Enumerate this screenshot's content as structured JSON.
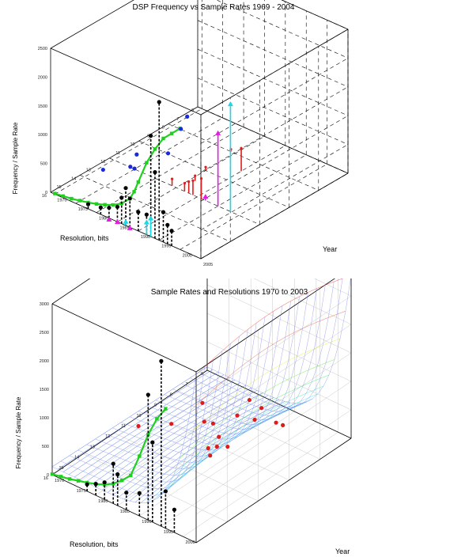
{
  "chart_data": [
    {
      "type": "3d-scatter-stem",
      "title": "DSP Frequency vs Sample Rates 1969 - 2004",
      "xlabel": "Year",
      "ylabel": "Resolution, bits",
      "zlabel": "Frequency / Sample Rate",
      "x_ticks": [
        "1970",
        "1975",
        "1980",
        "1985",
        "1990",
        "1995",
        "2000",
        "2005"
      ],
      "y_ticks": [
        "16",
        "15",
        "14",
        "13",
        "12",
        "11",
        "10",
        "9",
        "8",
        "7",
        "6"
      ],
      "z_ticks": [
        "0",
        "500",
        "1000",
        "1500",
        "2000",
        "2500"
      ],
      "xlim": [
        1969,
        2005
      ],
      "ylim": [
        6,
        16
      ],
      "zlim": [
        0,
        2500
      ],
      "grid": true,
      "series": [
        {
          "color": "#1fd01f",
          "kind": "line",
          "points": [
            {
              "x": 1970,
              "y": 16,
              "z": 10
            },
            {
              "x": 1972,
              "y": 16,
              "z": 30
            },
            {
              "x": 1974,
              "y": 16,
              "z": 50
            },
            {
              "x": 1976,
              "y": 16,
              "z": 80
            },
            {
              "x": 1978,
              "y": 16,
              "z": 110
            },
            {
              "x": 1980,
              "y": 16,
              "z": 150
            },
            {
              "x": 1982,
              "y": 16,
              "z": 200
            },
            {
              "x": 1984,
              "y": 16,
              "z": 260
            },
            {
              "x": 1986,
              "y": 16,
              "z": 350
            },
            {
              "x": 1988,
              "y": 16,
              "z": 500
            },
            {
              "x": 1989,
              "y": 16,
              "z": 650
            },
            {
              "x": 1990,
              "y": 16,
              "z": 850
            },
            {
              "x": 1992,
              "y": 16,
              "z": 1250
            },
            {
              "x": 1994,
              "y": 16,
              "z": 1550
            },
            {
              "x": 1996,
              "y": 16,
              "z": 1800
            },
            {
              "x": 1998,
              "y": 16,
              "z": 1950
            },
            {
              "x": 2000,
              "y": 16,
              "z": 2100
            }
          ]
        },
        {
          "color": "#000000",
          "kind": "stem",
          "points": [
            {
              "x": 1978,
              "y": 16,
              "z": 80
            },
            {
              "x": 1981,
              "y": 16,
              "z": 120
            },
            {
              "x": 1983,
              "y": 16,
              "z": 180
            },
            {
              "x": 1985,
              "y": 16,
              "z": 260
            },
            {
              "x": 1986,
              "y": 16,
              "z": 450
            },
            {
              "x": 1987,
              "y": 16,
              "z": 650
            },
            {
              "x": 1988,
              "y": 16,
              "z": 500
            },
            {
              "x": 1990,
              "y": 16,
              "z": 330
            },
            {
              "x": 1992,
              "y": 16,
              "z": 350
            },
            {
              "x": 1993,
              "y": 16,
              "z": 1750
            },
            {
              "x": 1994,
              "y": 16,
              "z": 1150
            },
            {
              "x": 1995,
              "y": 16,
              "z": 2400
            },
            {
              "x": 1996,
              "y": 16,
              "z": 520
            },
            {
              "x": 1997,
              "y": 16,
              "z": 330
            },
            {
              "x": 1998,
              "y": 16,
              "z": 260
            }
          ]
        },
        {
          "color": "#1a2ad8",
          "kind": "point",
          "points": [
            {
              "x": 1971,
              "y": 13,
              "z": 10
            },
            {
              "x": 1974,
              "y": 12,
              "z": 10
            },
            {
              "x": 1975,
              "y": 12,
              "z": 10
            },
            {
              "x": 1972,
              "y": 11,
              "z": 10
            },
            {
              "x": 1976,
              "y": 10,
              "z": 10
            },
            {
              "x": 1972,
              "y": 8,
              "z": 10
            },
            {
              "x": 1970,
              "y": 7,
              "z": 10
            }
          ]
        },
        {
          "color": "#e01b1b",
          "kind": "stem",
          "points": [
            {
              "x": 1984,
              "y": 8,
              "z": 40
            },
            {
              "x": 1985,
              "y": 10,
              "z": 60
            },
            {
              "x": 1986,
              "y": 11,
              "z": 90
            },
            {
              "x": 1987,
              "y": 12,
              "z": 140
            },
            {
              "x": 1988,
              "y": 12,
              "z": 200
            },
            {
              "x": 1989,
              "y": 12,
              "z": 250
            },
            {
              "x": 1984,
              "y": 12,
              "z": 120
            },
            {
              "x": 1990,
              "y": 9,
              "z": 400
            },
            {
              "x": 1991,
              "y": 12,
              "z": 350
            }
          ]
        },
        {
          "color": "#e41be4",
          "kind": "stem",
          "points": [
            {
              "x": 1983,
              "y": 16,
              "z": 10
            },
            {
              "x": 1985,
              "y": 16,
              "z": 30
            },
            {
              "x": 1988,
              "y": 16,
              "z": 20
            },
            {
              "x": 1992,
              "y": 12,
              "z": 100
            },
            {
              "x": 1995,
              "y": 12,
              "z": 1300
            }
          ]
        },
        {
          "color": "#1ad8e6",
          "kind": "stem",
          "points": [
            {
              "x": 1987,
              "y": 16,
              "z": 100
            },
            {
              "x": 1992,
              "y": 16,
              "z": 250
            },
            {
              "x": 1993,
              "y": 16,
              "z": 350
            },
            {
              "x": 1998,
              "y": 12,
              "z": 1900
            }
          ]
        }
      ]
    },
    {
      "type": "3d-surface-scatter",
      "title": "Sample Rates and Resolutions 1970 to 2003",
      "xlabel": "Year",
      "ylabel": "Resolution, bits",
      "zlabel": "Frequency / Sample Rate",
      "x_ticks": [
        "1970",
        "1975",
        "1980",
        "1985",
        "1990",
        "1995",
        "2000"
      ],
      "y_ticks": [
        "16",
        "15",
        "14",
        "13",
        "12",
        "11",
        "10",
        "9",
        "8",
        "7",
        "6"
      ],
      "z_ticks": [
        "0",
        "500",
        "1000",
        "1500",
        "2000",
        "2500",
        "3000"
      ],
      "xlim": [
        1970,
        2003
      ],
      "ylim": [
        6,
        16
      ],
      "zlim": [
        0,
        3000
      ],
      "grid": true,
      "surface": "rainbow mesh fitted through the points, rising steeply toward 2000+",
      "series": [
        {
          "color": "#1fd01f",
          "kind": "line",
          "points": [
            {
              "x": 1970,
              "y": 16,
              "z": 10
            },
            {
              "x": 1972,
              "y": 16,
              "z": 40
            },
            {
              "x": 1974,
              "y": 16,
              "z": 70
            },
            {
              "x": 1976,
              "y": 16,
              "z": 110
            },
            {
              "x": 1978,
              "y": 16,
              "z": 150
            },
            {
              "x": 1980,
              "y": 16,
              "z": 200
            },
            {
              "x": 1982,
              "y": 16,
              "z": 260
            },
            {
              "x": 1984,
              "y": 16,
              "z": 350
            },
            {
              "x": 1986,
              "y": 16,
              "z": 480
            },
            {
              "x": 1988,
              "y": 16,
              "z": 640
            },
            {
              "x": 1990,
              "y": 16,
              "z": 1050
            },
            {
              "x": 1992,
              "y": 16,
              "z": 1500
            },
            {
              "x": 1994,
              "y": 16,
              "z": 1850
            },
            {
              "x": 1996,
              "y": 16,
              "z": 2100
            }
          ]
        },
        {
          "color": "#000000",
          "kind": "stem",
          "points": [
            {
              "x": 1978,
              "y": 16,
              "z": 120
            },
            {
              "x": 1980,
              "y": 16,
              "z": 200
            },
            {
              "x": 1982,
              "y": 16,
              "z": 300
            },
            {
              "x": 1984,
              "y": 16,
              "z": 700
            },
            {
              "x": 1985,
              "y": 16,
              "z": 550
            },
            {
              "x": 1987,
              "y": 16,
              "z": 300
            },
            {
              "x": 1990,
              "y": 16,
              "z": 400
            },
            {
              "x": 1992,
              "y": 16,
              "z": 2200
            },
            {
              "x": 1993,
              "y": 16,
              "z": 1400
            },
            {
              "x": 1995,
              "y": 16,
              "z": 2900
            },
            {
              "x": 1996,
              "y": 16,
              "z": 650
            },
            {
              "x": 1998,
              "y": 16,
              "z": 400
            }
          ]
        },
        {
          "color": "#e01b1b",
          "kind": "point",
          "points": [
            {
              "x": 1972,
              "y": 11,
              "z": 10
            },
            {
              "x": 1976,
              "y": 10,
              "z": 10
            },
            {
              "x": 1976,
              "y": 8,
              "z": 10
            },
            {
              "x": 1980,
              "y": 9,
              "z": 10
            },
            {
              "x": 1982,
              "y": 9,
              "z": 50
            },
            {
              "x": 1984,
              "y": 8,
              "z": 80
            },
            {
              "x": 1986,
              "y": 7,
              "z": 100
            },
            {
              "x": 1988,
              "y": 8,
              "z": 150
            },
            {
              "x": 1988,
              "y": 11,
              "z": 200
            },
            {
              "x": 1990,
              "y": 11,
              "z": 300
            },
            {
              "x": 1992,
              "y": 12,
              "z": 400
            },
            {
              "x": 1994,
              "y": 12,
              "z": 800
            },
            {
              "x": 1996,
              "y": 12,
              "z": 700
            },
            {
              "x": 1998,
              "y": 9,
              "z": 600
            },
            {
              "x": 2000,
              "y": 10,
              "z": 900
            },
            {
              "x": 2001,
              "y": 12,
              "z": 1700
            }
          ]
        }
      ]
    }
  ]
}
